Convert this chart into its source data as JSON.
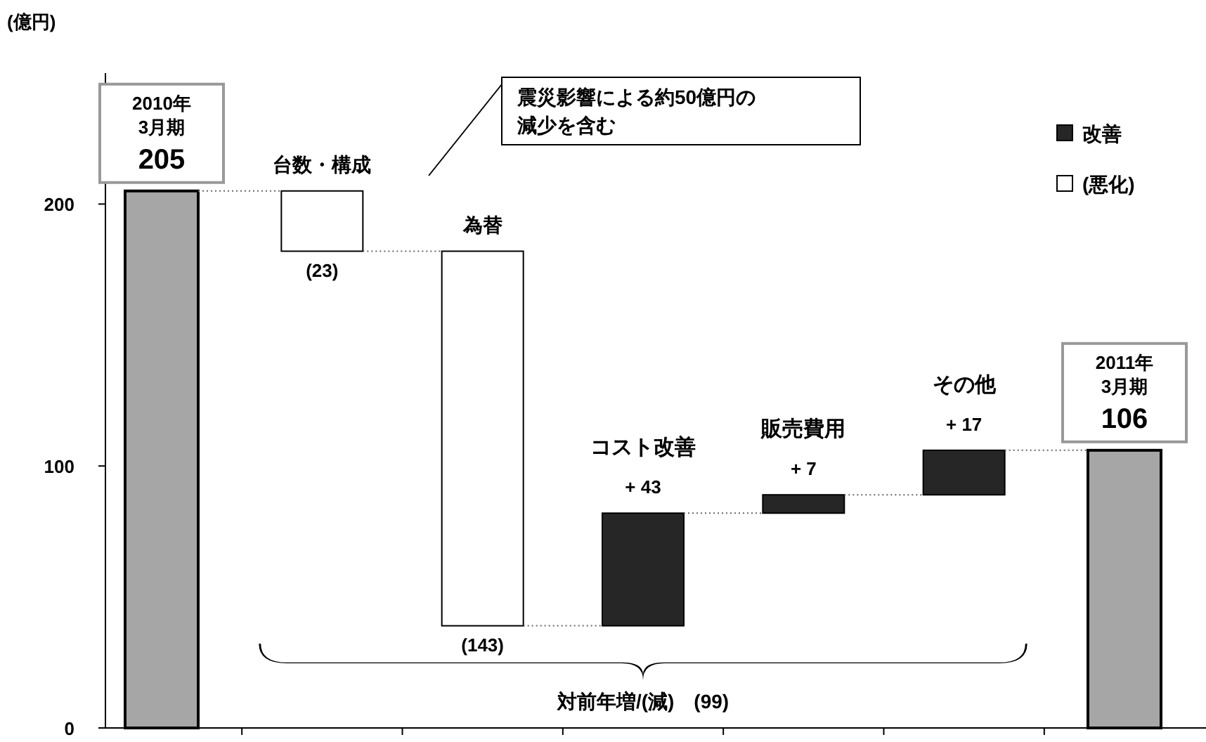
{
  "chart_data": {
    "type": "bar",
    "categories": [
      "2010年\n3月期",
      "台数・構成",
      "為替",
      "コスト改善",
      "販売費用",
      "その他",
      "2011年\n3月期"
    ],
    "ylabel": "(億円)",
    "ylim": [
      0,
      250
    ],
    "yticks": [
      0,
      100,
      200
    ],
    "series": [
      {
        "color": "#a6a6a6",
        "base": [
          0,
          null,
          null,
          null,
          null,
          null,
          0
        ],
        "values": [
          205,
          null,
          null,
          null,
          null,
          null,
          106
        ],
        "value_labels": [
          "205",
          null,
          null,
          null,
          null,
          null,
          "106"
        ]
      },
      {
        "name": "改善",
        "color": "#262626",
        "base": [
          null,
          null,
          null,
          39,
          82,
          89,
          null
        ],
        "values": [
          null,
          null,
          null,
          43,
          7,
          17,
          null
        ],
        "value_labels": [
          null,
          null,
          null,
          "+ 43",
          "+ 7",
          "+ 17",
          null
        ]
      },
      {
        "name": "(悪化)",
        "color": "#ffffff",
        "base": [
          null,
          205,
          182,
          null,
          null,
          null,
          null
        ],
        "values": [
          null,
          -23,
          -143,
          null,
          null,
          null,
          null
        ],
        "value_labels": [
          null,
          "(23)",
          "(143)",
          null,
          null,
          null,
          null
        ]
      }
    ],
    "legend": "top right",
    "grid": false,
    "annotations": [
      "震災影響による約50億円の減少を含む",
      "対前年増/(減)　(99)"
    ]
  }
}
